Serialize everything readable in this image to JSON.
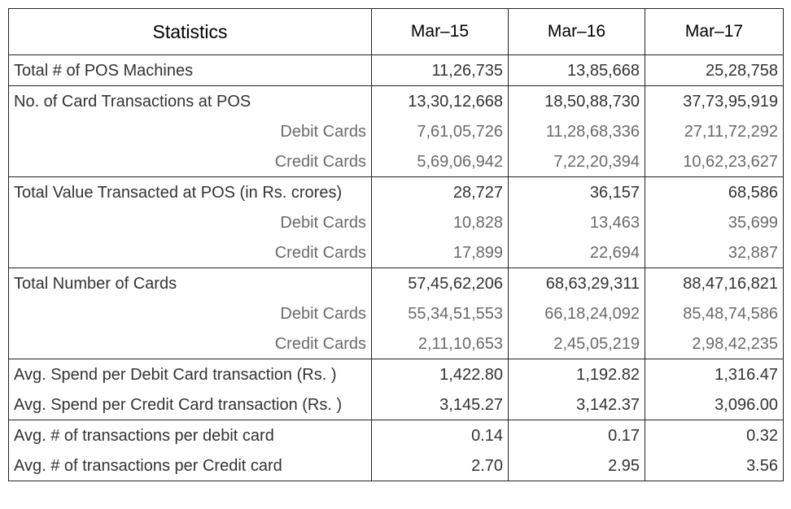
{
  "table": {
    "headers": [
      "Statistics",
      "Mar–15",
      "Mar–16",
      "Mar–17"
    ],
    "rows": [
      {
        "label": "Total # of POS Machines",
        "values": [
          "11,26,735",
          "13,85,668",
          "25,28,758"
        ]
      },
      {
        "label": "No.  of Card Transactions at POS",
        "values": [
          "13,30,12,668",
          "18,50,88,730",
          "37,73,95,919"
        ]
      },
      {
        "label": "Debit Cards",
        "values": [
          "7,61,05,726",
          "11,28,68,336",
          "27,11,72,292"
        ]
      },
      {
        "label": "Credit Cards",
        "values": [
          "5,69,06,942",
          "7,22,20,394",
          "10,62,23,627"
        ]
      },
      {
        "label": "Total Value Transacted at POS (in Rs. crores)",
        "values": [
          "28,727",
          "36,157",
          "68,586"
        ]
      },
      {
        "label": "Debit Cards",
        "values": [
          "10,828",
          "13,463",
          "35,699"
        ]
      },
      {
        "label": "Credit Cards",
        "values": [
          "17,899",
          "22,694",
          "32,887"
        ]
      },
      {
        "label": "Total Number of Cards",
        "values": [
          "57,45,62,206",
          "68,63,29,311",
          "88,47,16,821"
        ]
      },
      {
        "label": "Debit Cards",
        "values": [
          "55,34,51,553",
          "66,18,24,092",
          "85,48,74,586"
        ]
      },
      {
        "label": "Credit Cards",
        "values": [
          "2,11,10,653",
          "2,45,05,219",
          "2,98,42,235"
        ]
      },
      {
        "label": "Avg. Spend per Debit Card transaction (Rs. )",
        "values": [
          "1,422.80",
          "1,192.82",
          "1,316.47"
        ]
      },
      {
        "label": "Avg. Spend per Credit Card transaction (Rs. )",
        "values": [
          "3,145.27",
          "3,142.37",
          "3,096.00"
        ]
      },
      {
        "label": "Avg. # of transactions per debit card",
        "values": [
          "0.14",
          "0.17",
          "0.32"
        ]
      },
      {
        "label": "Avg. # of transactions per Credit card",
        "values": [
          "2.70",
          "2.95",
          "3.56"
        ]
      }
    ]
  }
}
